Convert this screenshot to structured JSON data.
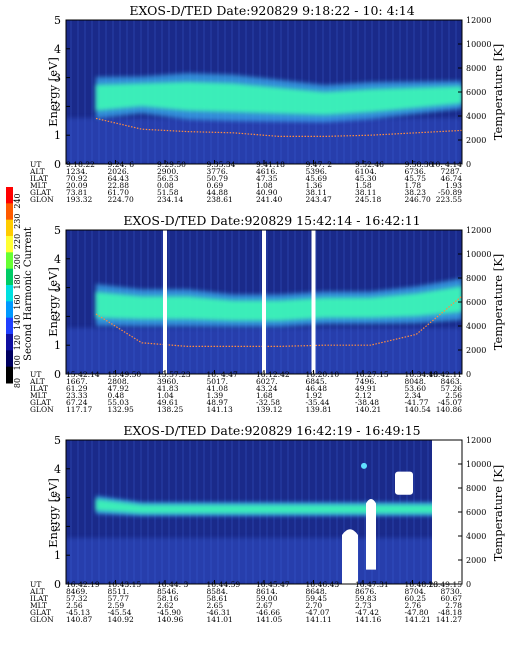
{
  "figure": {
    "colorbar": {
      "label": "Second Harmonic Current",
      "ticks": [
        "240",
        "230",
        "220",
        "200",
        "180",
        "160",
        "140",
        "120",
        "100",
        "80"
      ],
      "colors": [
        "#ff0000",
        "#ff5a00",
        "#ffcc00",
        "#ffff33",
        "#66ff33",
        "#00cc66",
        "#00e0e0",
        "#0099ff",
        "#2040ff",
        "#1010a0",
        "#000060",
        "#000000"
      ]
    },
    "legend_colors": {
      "background_low": "#1a2a8a",
      "background_mid": "#3350c8",
      "band_core": "#3cffb4",
      "band_edge": "#40c0ff",
      "temperature_trace": "#ff8c40"
    }
  },
  "chart_data": [
    {
      "type": "heatmap",
      "title": "EXOS-D/TED   Date:920829  9:18:22 - 10: 4:14",
      "ylabel": "Energy [eV]",
      "y2label": "Temperature [K]",
      "ylim": [
        0,
        5
      ],
      "y2lim": [
        0,
        12000
      ],
      "yticks": [
        "0",
        "1",
        "2",
        "3",
        "4",
        "5"
      ],
      "y2ticks": [
        "0",
        "2000",
        "4000",
        "6000",
        "8000",
        "10000",
        "12000"
      ],
      "grid": false,
      "band": {
        "energy_center": [
          2.3,
          2.4,
          2.35,
          2.3,
          2.2,
          2.1,
          2.2,
          2.3,
          2.4
        ],
        "energy_halfwidth": [
          0.45,
          0.4,
          0.5,
          0.5,
          0.45,
          0.4,
          0.4,
          0.35,
          0.3
        ]
      },
      "temperature_k": [
        3800,
        2900,
        2700,
        2600,
        2300,
        2300,
        2400,
        2600,
        2800
      ],
      "row_labels": [
        "UT",
        "ALT",
        "ILAT",
        "MLT",
        "GLAT",
        "GLON"
      ],
      "columns": [
        [
          "9:18:22",
          "1234.",
          "70.92",
          "20.09",
          "73.81",
          "193.32"
        ],
        [
          "9:24: 6",
          "2026.",
          "64.43",
          "22.88",
          "61.70",
          "224.70"
        ],
        [
          "9:29:50",
          "2900.",
          "56.53",
          "0.08",
          "51.58",
          "234.14"
        ],
        [
          "9:35:34",
          "3776.",
          "50.79",
          "0.69",
          "44.88",
          "238.61"
        ],
        [
          "9:41:18",
          "4616.",
          "47.35",
          "1.08",
          "40.90",
          "241.40"
        ],
        [
          "9:47: 2",
          "5396.",
          "45.69",
          "1.36",
          "38.11",
          "243.47"
        ],
        [
          "9:52:46",
          "6104.",
          "45.30",
          "1.58",
          "38.11",
          "245.18"
        ],
        [
          "9:58:30",
          "6736.",
          "45.75",
          "1.78",
          "38.23",
          "246.70"
        ],
        [
          "10: 4:14",
          "7287.",
          "46.74",
          "1.93",
          "-50.89",
          "223.55"
        ]
      ]
    },
    {
      "type": "heatmap",
      "title": "EXOS-D/TED   Date:920829  15:42:14 - 16:42:11",
      "ylabel": "Energy [eV]",
      "y2label": "Temperature [K]",
      "ylim": [
        0,
        5
      ],
      "y2lim": [
        0,
        12000
      ],
      "yticks": [
        "0",
        "1",
        "2",
        "3",
        "4",
        "5"
      ],
      "y2ticks": [
        "0",
        "2000",
        "4000",
        "6000",
        "8000",
        "10000",
        "12000"
      ],
      "grid": false,
      "band": {
        "energy_center": [
          2.4,
          2.3,
          2.3,
          2.2,
          2.2,
          2.3,
          2.3,
          2.4,
          2.6
        ],
        "energy_halfwidth": [
          0.45,
          0.4,
          0.4,
          0.35,
          0.35,
          0.35,
          0.35,
          0.4,
          0.45
        ]
      },
      "temperature_k": [
        5000,
        2600,
        2300,
        2300,
        2300,
        2400,
        2400,
        3300,
        6500
      ],
      "data_gaps_ut": [
        "15:57:23",
        "16:12:42",
        "16:20:10"
      ],
      "row_labels": [
        "UT",
        "ALT",
        "ILAT",
        "MLT",
        "GLAT",
        "GLON"
      ],
      "columns": [
        [
          "15:42:14",
          "1667.",
          "61.29",
          "23.33",
          "67.24",
          "117.17"
        ],
        [
          "15:49:50",
          "2808.",
          "47.92",
          "0.48",
          "55.03",
          "132.95"
        ],
        [
          "15:57:23",
          "3960.",
          "41.83",
          "1.04",
          "49.61",
          "138.25"
        ],
        [
          "16: 4:47",
          "5017.",
          "41.08",
          "1.39",
          "48.97",
          "141.13"
        ],
        [
          "16:12:42",
          "6027.",
          "43.24",
          "1.68",
          "-32.58",
          "139.12"
        ],
        [
          "16:20:10",
          "6845.",
          "46.48",
          "1.92",
          "-35.44",
          "139.81"
        ],
        [
          "16:27:15",
          "7496.",
          "49.91",
          "2.12",
          "-38.48",
          "140.21"
        ],
        [
          "16:34:43",
          "8048.",
          "53.60",
          "2.34",
          "-41.77",
          "140.54"
        ],
        [
          "16:42:11",
          "8463.",
          "57.26",
          "2.56",
          "-45.07",
          "140.86"
        ]
      ]
    },
    {
      "type": "heatmap",
      "title": "EXOS-D/TED   Date:920829  16:42:19 - 16:49:15",
      "ylabel": "Energy [eV]",
      "y2label": "Temperature [K]",
      "ylim": [
        0,
        5
      ],
      "y2lim": [
        0,
        12000
      ],
      "yticks": [
        "0",
        "1",
        "2",
        "3",
        "4",
        "5"
      ],
      "y2ticks": [
        "0",
        "2000",
        "4000",
        "6000",
        "8000",
        "10000",
        "12000"
      ],
      "grid": false,
      "band": {
        "energy_center": [
          2.75,
          2.6,
          2.6,
          2.6,
          2.6,
          2.6,
          2.6,
          2.6,
          2.6
        ],
        "energy_halfwidth": [
          0.2,
          0.15,
          0.15,
          0.15,
          0.15,
          0.15,
          0.15,
          0.15,
          0.15
        ]
      },
      "row_labels": [
        "UT",
        "ALT",
        "ILAT",
        "MLT",
        "GLAT",
        "GLON"
      ],
      "columns": [
        [
          "16:42:19",
          "8469.",
          "57.32",
          "2.56",
          "-45.13",
          "140.87"
        ],
        [
          "16:43:15",
          "8511.",
          "57.77",
          "2.59",
          "-45.54",
          "140.92"
        ],
        [
          "16:44: 3",
          "8546.",
          "58.16",
          "2.62",
          "-45.90",
          "140.96"
        ],
        [
          "16:44:59",
          "8584.",
          "58.61",
          "2.65",
          "-46.31",
          "141.01"
        ],
        [
          "16:45:47",
          "8614.",
          "59.00",
          "2.67",
          "-46.66",
          "141.05"
        ],
        [
          "16:46:43",
          "8648.",
          "59.45",
          "2.70",
          "-47.07",
          "141.11"
        ],
        [
          "16:47:31",
          "8676.",
          "59.83",
          "2.73",
          "-47.42",
          "141.16"
        ],
        [
          "16:48:23",
          "8704.",
          "60.25",
          "2.76",
          "-47.80",
          "141.21"
        ],
        [
          "16:49:15",
          "8730.",
          "60.67",
          "2.78",
          "-48.18",
          "141.27"
        ]
      ]
    }
  ]
}
